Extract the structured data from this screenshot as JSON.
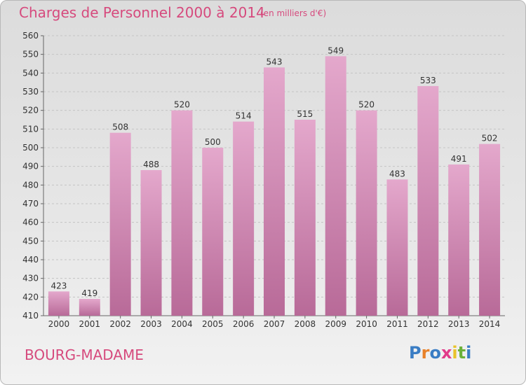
{
  "header": {
    "title": "Charges de Personnel 2000 à 2014",
    "unit_note": "(en milliers d'€)"
  },
  "footer": {
    "commune": "BOURG-MADAME",
    "logo_letters": [
      {
        "ch": "P",
        "color": "#3a7dc4"
      },
      {
        "ch": "r",
        "color": "#e8822a"
      },
      {
        "ch": "o",
        "color": "#3a7dc4"
      },
      {
        "ch": "x",
        "color": "#e23b8a"
      },
      {
        "ch": "i",
        "color": "#e8c22a"
      },
      {
        "ch": "t",
        "color": "#6bb13a"
      },
      {
        "ch": "i",
        "color": "#3a7dc4"
      }
    ]
  },
  "chart_data": {
    "type": "bar",
    "categories": [
      "2000",
      "2001",
      "2002",
      "2003",
      "2004",
      "2005",
      "2006",
      "2007",
      "2008",
      "2009",
      "2010",
      "2011",
      "2012",
      "2013",
      "2014"
    ],
    "values": [
      423,
      419,
      508,
      488,
      520,
      500,
      514,
      543,
      515,
      549,
      520,
      483,
      533,
      491,
      502
    ],
    "title": "Charges de Personnel 2000 à 2014",
    "subtitle": "(en milliers d'€)",
    "ylim": [
      410,
      560
    ],
    "yticks": [
      410,
      420,
      430,
      440,
      450,
      460,
      470,
      480,
      490,
      500,
      510,
      520,
      530,
      540,
      550,
      560
    ],
    "grid": true,
    "bar_color_top": "#e4a8cc",
    "bar_color_bottom": "#b86a98"
  }
}
